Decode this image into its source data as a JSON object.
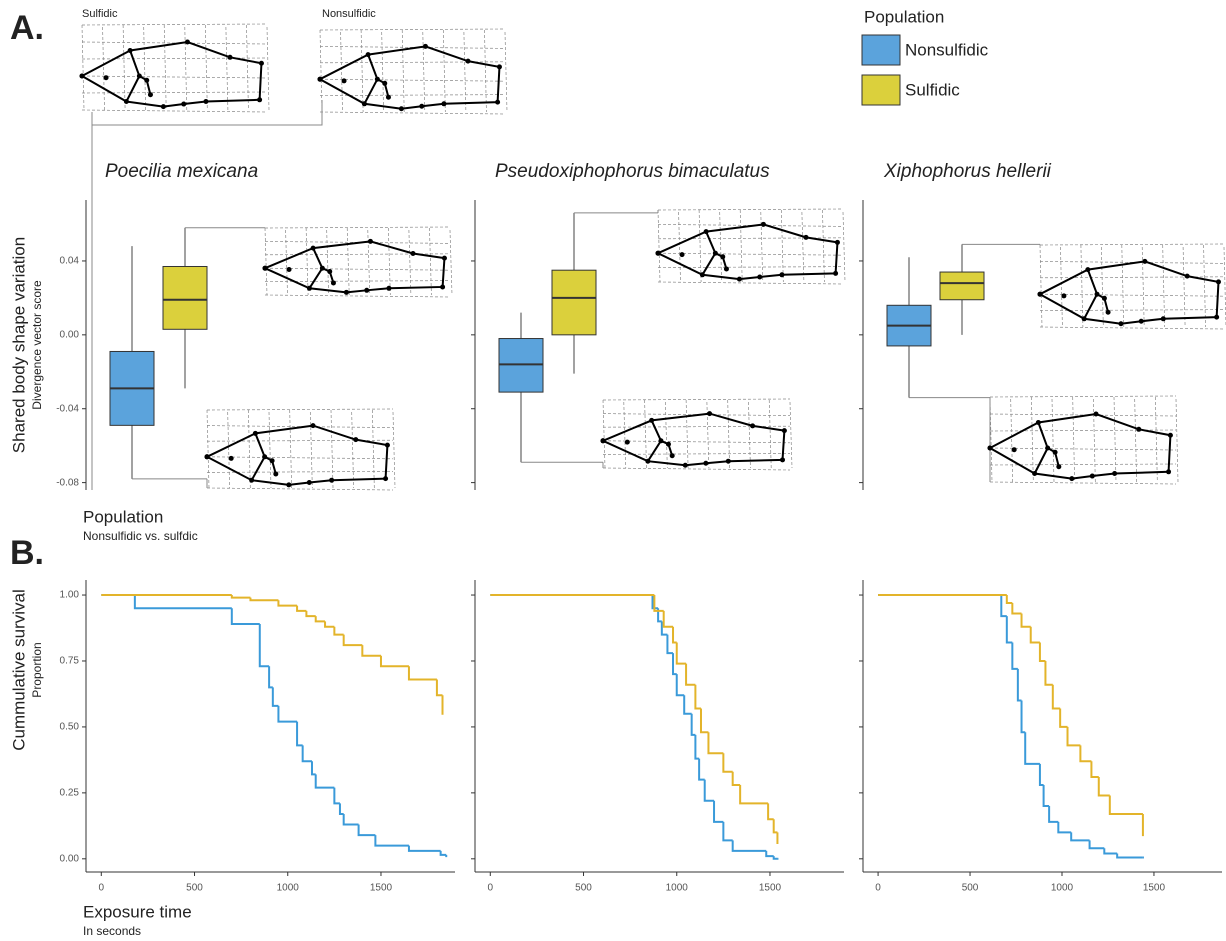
{
  "figure": {
    "panel_a": "A.",
    "panel_b": "B.",
    "fish_labels": [
      "Sulfidic",
      "Nonsulfidic"
    ],
    "legend_title": "Population"
  },
  "chart_data": [
    {
      "type": "box",
      "title": "Poecilia mexicana",
      "y_label": "Shared body shape variation",
      "y_sublabel": "Divergence vector score",
      "x_label": "Population",
      "x_sublabel": "Nonsulfidic vs. sulfdic",
      "ylim": [
        -0.084,
        0.073
      ],
      "yticks": [
        -0.08,
        -0.04,
        {
          "value": 0,
          "label": "0.00"
        },
        0.04
      ],
      "series": [
        {
          "name": "Nonsulfidic",
          "color": "#5ba3dc",
          "low": -0.078,
          "q1": -0.049,
          "median": -0.029,
          "q3": -0.009,
          "high": 0.048
        },
        {
          "name": "Sulfidic",
          "color": "#dbd03c",
          "low": -0.029,
          "q1": 0.003,
          "median": 0.019,
          "q3": 0.037,
          "high": 0.058
        }
      ]
    },
    {
      "type": "box",
      "title": "Pseudoxiphophorus bimaculatus",
      "ylim": [
        -0.084,
        0.073
      ],
      "yticks": [
        -0.08,
        -0.04,
        0,
        0.04
      ],
      "series": [
        {
          "color": "#5ba3dc",
          "low": -0.069,
          "q1": -0.031,
          "median": -0.016,
          "q3": -0.002,
          "high": 0.012
        },
        {
          "color": "#dbd03c",
          "low": -0.021,
          "q1": 0.0,
          "median": 0.02,
          "q3": 0.035,
          "high": 0.066
        }
      ]
    },
    {
      "type": "box",
      "title": "Xiphophorus hellerii",
      "ylim": [
        -0.084,
        0.073
      ],
      "yticks": [
        -0.08,
        -0.04,
        0,
        0.04
      ],
      "series": [
        {
          "color": "#5ba3dc",
          "low": -0.034,
          "q1": -0.006,
          "median": 0.005,
          "q3": 0.016,
          "high": 0.042
        },
        {
          "color": "#dbd03c",
          "low": 0.0,
          "q1": 0.019,
          "median": 0.028,
          "q3": 0.034,
          "high": 0.049
        }
      ]
    },
    {
      "type": "step",
      "y_label": "Cummulative survival",
      "y_sublabel": "Proportion",
      "x_label": "Exposure time",
      "x_sublabel": "In seconds",
      "xlim": [
        -82,
        1897
      ],
      "xticks": [
        0,
        500,
        1000,
        1500
      ],
      "ylim": [
        -0.05,
        1.057
      ],
      "yticks": [
        {
          "value": 0,
          "label": "0.00"
        },
        {
          "value": 0.25,
          "label": "0.25"
        },
        {
          "value": 0.5,
          "label": "0.50"
        },
        {
          "value": 0.75,
          "label": "0.75"
        },
        {
          "value": 1,
          "label": "1.00"
        }
      ],
      "series": [
        {
          "color": "#3a9ad9",
          "x": [
            0,
            180,
            700,
            850,
            900,
            920,
            950,
            1050,
            1080,
            1130,
            1150,
            1250,
            1280,
            1300,
            1380,
            1470,
            1650,
            1820,
            1850
          ],
          "values": [
            1.0,
            0.95,
            0.89,
            0.73,
            0.65,
            0.58,
            0.52,
            0.43,
            0.37,
            0.32,
            0.27,
            0.21,
            0.17,
            0.13,
            0.09,
            0.05,
            0.03,
            0.015,
            0.01
          ]
        },
        {
          "color": "#e3b42a",
          "x": [
            0,
            700,
            800,
            950,
            1050,
            1100,
            1150,
            1200,
            1250,
            1300,
            1400,
            1500,
            1650,
            1800,
            1830
          ],
          "values": [
            1.0,
            0.99,
            0.98,
            0.96,
            0.94,
            0.92,
            0.9,
            0.88,
            0.85,
            0.81,
            0.77,
            0.73,
            0.68,
            0.62,
            0.55
          ]
        }
      ]
    },
    {
      "type": "step",
      "xlim": [
        -82,
        1897
      ],
      "xticks": [
        0,
        500,
        1000,
        1500
      ],
      "ylim": [
        -0.05,
        1.057
      ],
      "yticks": [
        0,
        0.25,
        0.5,
        0.75,
        1
      ],
      "series": [
        {
          "color": "#3a9ad9",
          "x": [
            0,
            870,
            900,
            920,
            950,
            980,
            1000,
            1040,
            1080,
            1100,
            1120,
            1150,
            1200,
            1250,
            1300,
            1480,
            1520,
            1540
          ],
          "values": [
            1.0,
            0.95,
            0.9,
            0.85,
            0.78,
            0.7,
            0.62,
            0.55,
            0.47,
            0.38,
            0.3,
            0.22,
            0.14,
            0.07,
            0.03,
            0.01,
            0.0,
            0.0
          ]
        },
        {
          "color": "#e3b42a",
          "x": [
            0,
            880,
            930,
            980,
            1000,
            1050,
            1100,
            1130,
            1170,
            1250,
            1300,
            1340,
            1490,
            1520,
            1540
          ],
          "values": [
            1.0,
            0.94,
            0.88,
            0.82,
            0.74,
            0.66,
            0.57,
            0.48,
            0.4,
            0.33,
            0.28,
            0.21,
            0.15,
            0.1,
            0.06
          ]
        }
      ]
    },
    {
      "type": "step",
      "xlim": [
        -82,
        1870
      ],
      "xticks": [
        0,
        500,
        1000,
        1500
      ],
      "ylim": [
        -0.05,
        1.057
      ],
      "yticks": [
        0,
        0.25,
        0.5,
        0.75,
        1
      ],
      "series": [
        {
          "color": "#3a9ad9",
          "x": [
            0,
            670,
            700,
            730,
            760,
            780,
            800,
            880,
            900,
            930,
            980,
            1050,
            1150,
            1230,
            1300,
            1440
          ],
          "values": [
            1.0,
            0.92,
            0.82,
            0.72,
            0.6,
            0.48,
            0.36,
            0.28,
            0.2,
            0.14,
            0.1,
            0.07,
            0.04,
            0.02,
            0.005,
            0.005
          ]
        },
        {
          "color": "#e3b42a",
          "x": [
            0,
            700,
            730,
            780,
            830,
            880,
            910,
            950,
            990,
            1030,
            1100,
            1160,
            1200,
            1260,
            1440
          ],
          "values": [
            1.0,
            0.97,
            0.93,
            0.88,
            0.82,
            0.75,
            0.66,
            0.57,
            0.5,
            0.43,
            0.37,
            0.31,
            0.24,
            0.17,
            0.09
          ]
        }
      ]
    }
  ]
}
